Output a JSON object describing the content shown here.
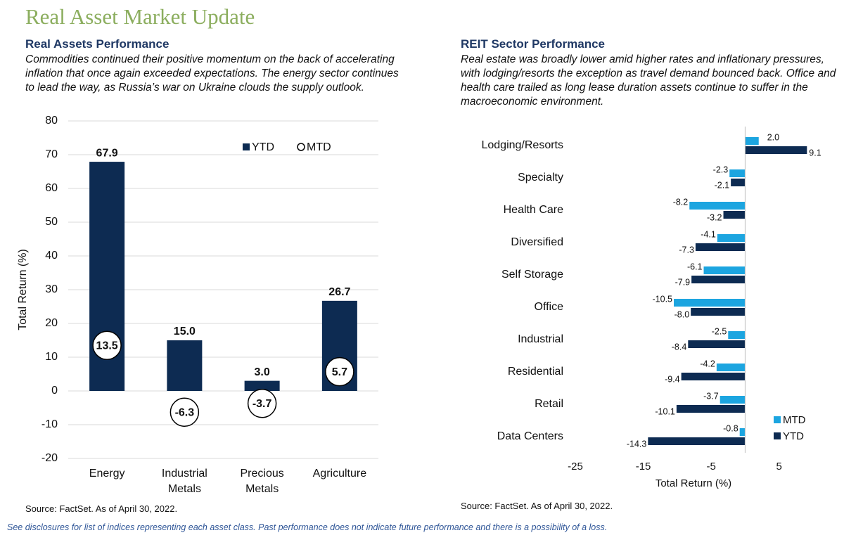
{
  "title": "Real Asset Market Update",
  "footer": "See disclosures for list of indices representing each asset class. Past performance does not indicate future performance and there is a possibility of a loss.",
  "chart_data": [
    {
      "type": "bar",
      "title": "Real Assets Performance",
      "subtitle": "Commodities continued their positive momentum on the back of accelerating inflation that once again exceeded expectations. The energy sector continues to lead the way, as Russia’s war on Ukraine clouds the supply outlook.",
      "ylabel": "Total Return (%)",
      "categories": [
        "Energy",
        "Industrial Metals",
        "Precious Metals",
        "Agriculture"
      ],
      "series": [
        {
          "name": "YTD",
          "color": "#0d2b52",
          "marker": "bar",
          "values": [
            67.9,
            15.0,
            3.0,
            26.7
          ],
          "value_labels": [
            "67.9",
            "15.0",
            "3.0",
            "26.7"
          ]
        },
        {
          "name": "MTD",
          "color": "#ffffff",
          "marker": "circle",
          "values": [
            13.5,
            -6.3,
            -3.7,
            5.7
          ]
        }
      ],
      "ylim": [
        -20,
        80
      ],
      "yticks": [
        -20,
        -10,
        0,
        10,
        20,
        30,
        40,
        50,
        60,
        70,
        80
      ],
      "grid": true,
      "legend": "upper right",
      "source": "Source: FactSet. As of April 30, 2022."
    },
    {
      "type": "barh",
      "title": "REIT Sector Performance",
      "subtitle": "Real estate was broadly lower amid higher rates and inflationary pressures, with lodging/resorts the exception as travel demand bounced back. Office and health care trailed as long lease duration assets continue to suffer in the macroeconomic environment.",
      "xlabel": "Total Return (%)",
      "categories": [
        "Lodging/Resorts",
        "Specialty",
        "Health Care",
        "Diversified",
        "Self Storage",
        "Office",
        "Industrial",
        "Residential",
        "Retail",
        "Data Centers"
      ],
      "series": [
        {
          "name": "MTD",
          "color": "#1ca5e0",
          "values": [
            2.0,
            -2.3,
            -8.2,
            -4.1,
            -6.1,
            -10.5,
            -2.5,
            -4.2,
            -3.7,
            -0.8
          ],
          "value_labels": [
            "2.0",
            "-2.3",
            "-8.2",
            "-4.1",
            "-6.1",
            "-10.5",
            "-2.5",
            "-4.2",
            "-3.7",
            "-0.8"
          ]
        },
        {
          "name": "YTD",
          "color": "#0d2b52",
          "values": [
            9.1,
            -2.1,
            -3.2,
            -7.3,
            -7.9,
            -8.0,
            -8.4,
            -9.4,
            -10.1,
            -14.3
          ],
          "value_labels": [
            "9.1",
            "-2.1",
            "-3.2",
            "-7.3",
            "-7.9",
            "-8.0",
            "-8.4",
            "-9.4",
            "-10.1",
            "-14.3"
          ]
        }
      ],
      "xlim": [
        -25,
        10
      ],
      "xticks": [
        -25,
        -15,
        -5,
        5
      ],
      "grid": false,
      "legend": "lower right",
      "source": "Source: FactSet. As of April 30, 2022."
    }
  ]
}
